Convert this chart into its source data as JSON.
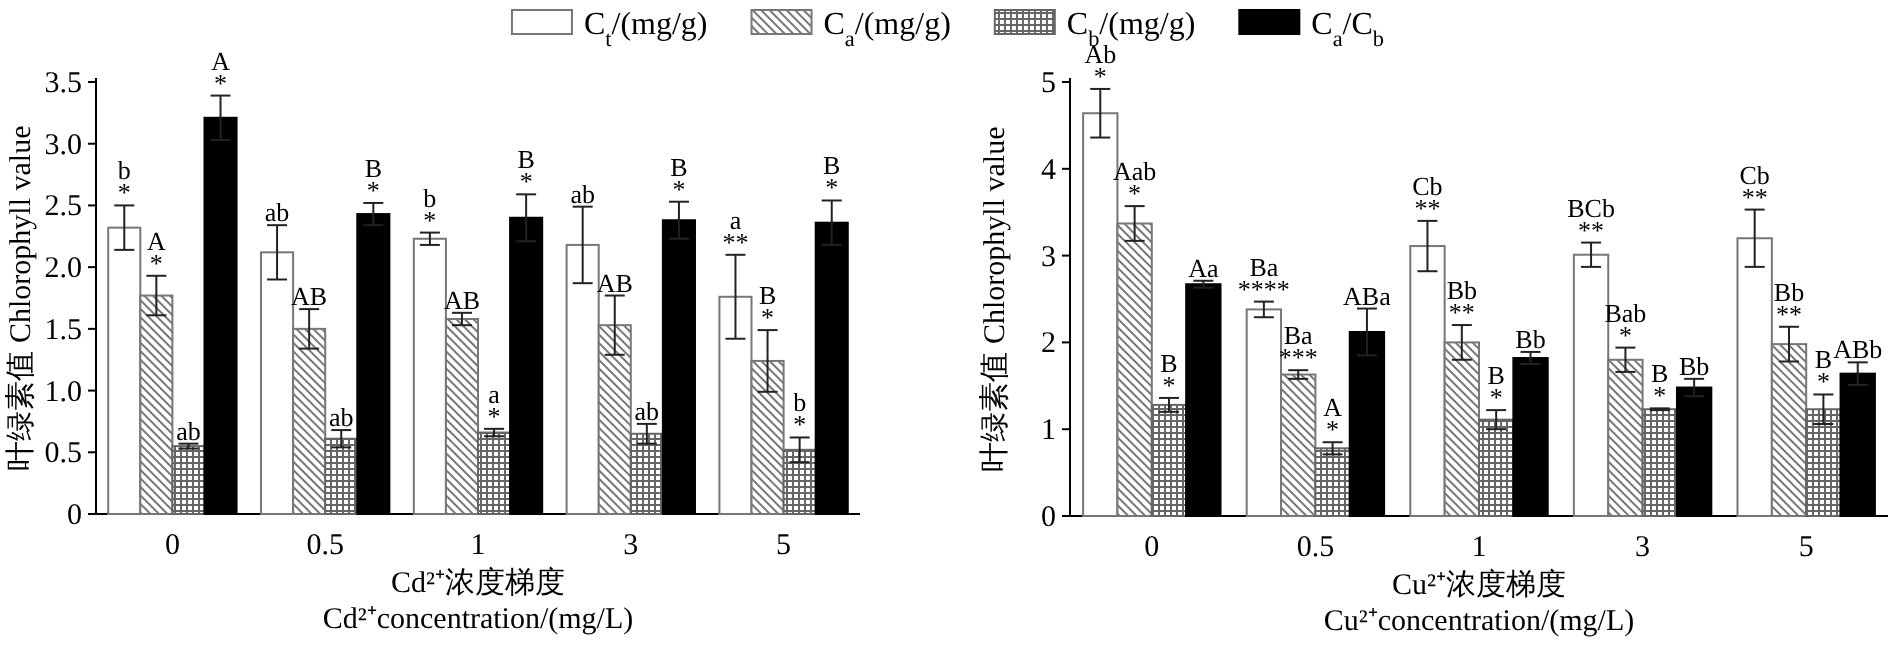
{
  "chart_data": [
    {
      "type": "bar",
      "xlabel": "Cd²⁺浓度梯度\nCd²⁺concentration/(mg/L)",
      "ylabel": "叶绿素值 Chlorophyll value",
      "categories": [
        "0",
        "0.5",
        "1",
        "3",
        "5"
      ],
      "ylim": [
        0,
        3.5
      ],
      "yticks": [
        0,
        0.5,
        {
          "value": 1,
          "label": "1.0"
        },
        1.5,
        {
          "value": 2,
          "label": "2.0"
        },
        2.5,
        {
          "value": 3,
          "label": "3.0"
        },
        3.5
      ],
      "legend": "top",
      "series": [
        {
          "name": "C$_{t}$/(mg/g)",
          "color": "#ffffff",
          "values": [
            2.32,
            2.12,
            2.23,
            2.18,
            1.76
          ],
          "errors": [
            0.18,
            0.22,
            0.05,
            0.31,
            0.34
          ],
          "value_labels": [
            "b\n*",
            "ab",
            "b\n*",
            "ab",
            "a\n**"
          ]
        },
        {
          "name": "C$_{a}$/(mg/g)",
          "color": "#777777",
          "values": [
            1.77,
            1.5,
            1.58,
            1.53,
            1.24
          ],
          "errors": [
            0.16,
            0.16,
            0.05,
            0.24,
            0.25
          ],
          "value_labels": [
            "A\n*",
            "AB",
            "AB",
            "AB",
            "B\n*"
          ]
        },
        {
          "name": "C$_{b}$/(mg/g)",
          "color": "#666666",
          "values": [
            0.55,
            0.61,
            0.66,
            0.65,
            0.52
          ],
          "errors": [
            0.02,
            0.07,
            0.03,
            0.08,
            0.1
          ],
          "value_labels": [
            "ab",
            "ab",
            "a\n*",
            "ab",
            "b\n*"
          ]
        },
        {
          "name": "C$_{a}$/C$_{b}$",
          "color": "#000000",
          "values": [
            3.21,
            2.43,
            2.4,
            2.38,
            2.36
          ],
          "errors": [
            0.18,
            0.09,
            0.19,
            0.15,
            0.18
          ],
          "value_labels": [
            "A\n*",
            "B\n*",
            "B\n*",
            "B\n*",
            "B\n*"
          ]
        }
      ]
    },
    {
      "type": "bar",
      "xlabel": "Cu²⁺浓度梯度\nCu²⁺concentration/(mg/L)",
      "ylabel": "叶绿素值 Chlorophyll value",
      "categories": [
        "0",
        "0.5",
        "1",
        "3",
        "5"
      ],
      "ylim": [
        0,
        5
      ],
      "yticks": [
        0,
        1,
        2,
        3,
        4,
        5
      ],
      "series": [
        {
          "color": "#ffffff",
          "values": [
            4.64,
            2.38,
            3.11,
            3.01,
            3.2
          ],
          "errors": [
            0.28,
            0.09,
            0.29,
            0.14,
            0.33
          ],
          "value_labels": [
            "Ab\n*",
            "Ba\n****",
            "Cb\n**",
            "BCb\n**",
            "Cb\n**"
          ]
        },
        {
          "color": "#777777",
          "values": [
            3.37,
            1.63,
            2.0,
            1.8,
            1.98
          ],
          "errors": [
            0.2,
            0.05,
            0.2,
            0.14,
            0.2
          ],
          "value_labels": [
            "Aab\n*",
            "Ba\n***",
            "Bb\n**",
            "Bab\n*",
            "Bb\n**"
          ]
        },
        {
          "color": "#666666",
          "values": [
            1.28,
            0.78,
            1.11,
            1.23,
            1.23
          ],
          "errors": [
            0.08,
            0.07,
            0.11,
            0.01,
            0.17
          ],
          "value_labels": [
            "B\n*",
            "A\n*",
            "B\n*",
            "B\n*",
            "B\n*"
          ]
        },
        {
          "color": "#000000",
          "values": [
            2.67,
            2.12,
            1.82,
            1.48,
            1.64
          ],
          "errors": [
            0.04,
            0.27,
            0.07,
            0.1,
            0.13
          ],
          "value_labels": [
            "Aa",
            "ABa",
            "Bb",
            "Bb",
            "ABb"
          ]
        }
      ]
    }
  ]
}
